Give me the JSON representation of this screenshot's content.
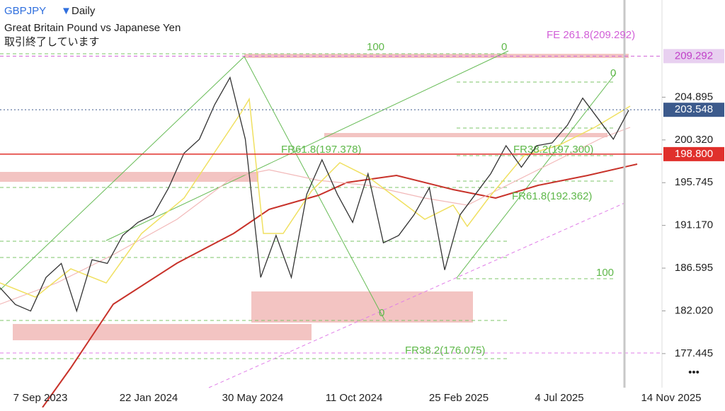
{
  "header": {
    "symbol": "GBPJPY",
    "timeframe": "Daily",
    "description": "Great Britain Pound vs Japanese Yen",
    "status": "取引終了しています"
  },
  "price_axis": {
    "ylim": [
      173.8,
      215.3
    ],
    "ticks": [
      204.895,
      {
        "value": 200.32,
        "label": "200.320"
      },
      195.745,
      {
        "value": 191.17,
        "label": "191.170"
      },
      186.595,
      {
        "value": 182.02,
        "label": "182.020"
      },
      177.445
    ]
  },
  "price_tags": [
    {
      "value": 209.292,
      "label": "209.292",
      "color": "#e8d0f0",
      "text_color": "#c03fc8"
    },
    {
      "value": 203.548,
      "label": "203.548",
      "color": "#3c5a8c",
      "text_color": "#ffffff"
    },
    {
      "value": 198.8,
      "label": "198.800",
      "color": "#e0302c",
      "text_color": "#ffffff"
    }
  ],
  "date_labels": [
    "7 Sep 2023",
    "22 Jan 2024",
    "30 May 2024",
    "11 Oct 2024",
    "25 Feb 2025",
    "4 Jul 2025",
    "14 Nov 2025"
  ],
  "annotations": [
    "FE 261.8(209.292)",
    "100",
    "0",
    "0",
    "FR61.8(197.378)",
    "FR38.2(197.300)",
    "FR61.8(192.362)",
    "100",
    "0",
    "FR38.2(176.075)"
  ],
  "price_line": {
    "color": "#333333",
    "values": [
      184.5,
      182.7,
      182,
      185.6,
      187.1,
      182,
      187.5,
      187.1,
      190.1,
      191.5,
      192.3,
      195.2,
      198.9,
      200.4,
      204.1,
      207.0,
      200.4,
      185.6,
      190.1,
      185.6,
      194.5,
      198.2,
      194.5,
      191.5,
      196.7,
      189.3,
      190.1,
      192.3,
      195.2,
      186.4,
      192.3,
      194.5,
      196.7,
      199.7,
      197.4,
      199.7,
      200.0,
      201.9,
      204.8,
      202.6,
      200.4,
      203.5
    ]
  }
}
